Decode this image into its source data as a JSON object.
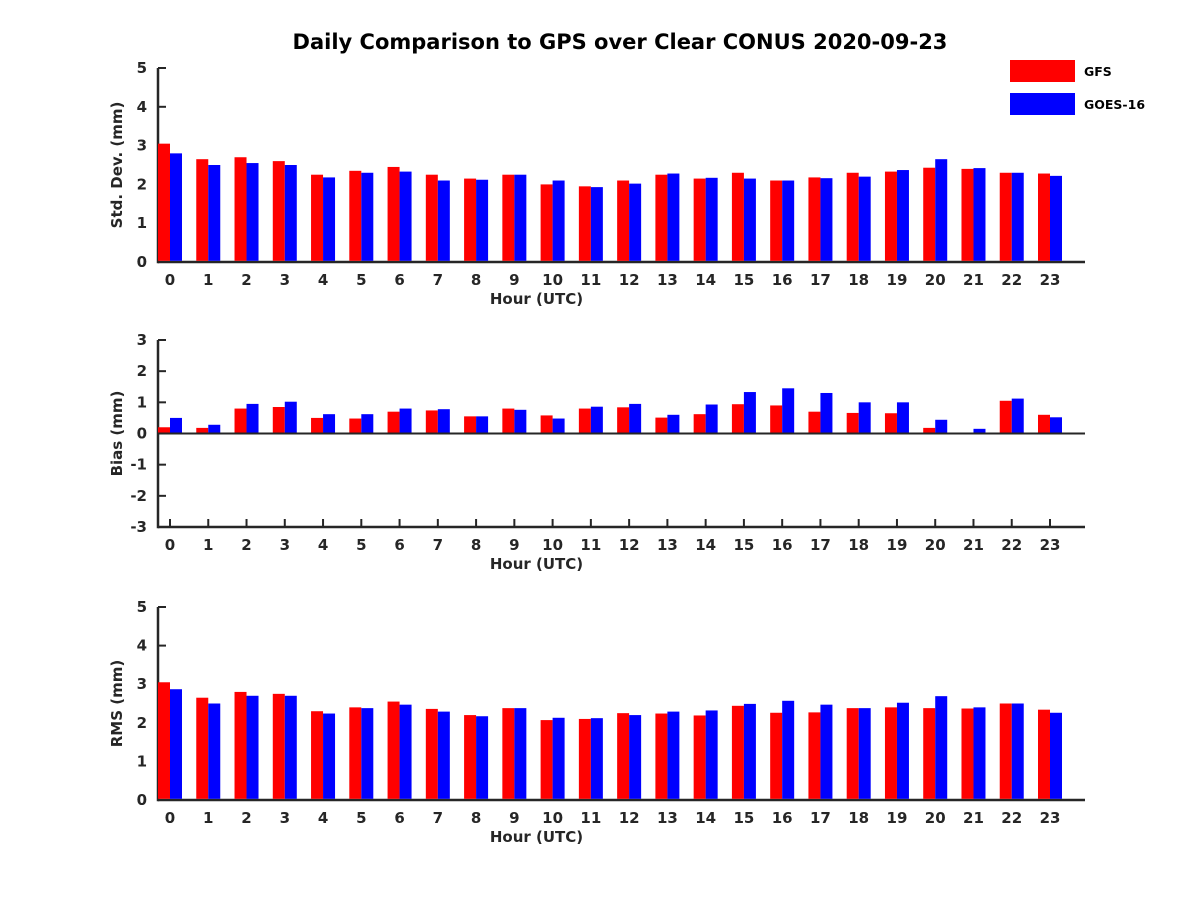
{
  "title": "Daily Comparison to GPS over Clear CONUS 2020-09-23",
  "legend": {
    "position": "top-right",
    "items": [
      {
        "label": "GFS",
        "color": "#ff0000",
        "swatch": "red-swatch"
      },
      {
        "label": "GOES-16",
        "color": "#0000ff",
        "swatch": "blue-swatch"
      }
    ]
  },
  "colors": {
    "gfs": "#ff0000",
    "goes16": "#0000ff",
    "axis": "#262626",
    "title_text": "#000000"
  },
  "chart_data": [
    {
      "id": "stddev",
      "type": "bar",
      "title": "",
      "xlabel": "Hour (UTC)",
      "ylabel": "Std. Dev. (mm)",
      "ylim": [
        0,
        5
      ],
      "yticks": [
        0,
        1,
        2,
        3,
        4,
        5
      ],
      "grid": false,
      "zero_line": false,
      "show_x_ticks": false,
      "categories": [
        "0",
        "1",
        "2",
        "3",
        "4",
        "5",
        "6",
        "7",
        "8",
        "9",
        "10",
        "11",
        "12",
        "13",
        "14",
        "15",
        "16",
        "17",
        "18",
        "19",
        "20",
        "21",
        "22",
        "23"
      ],
      "series": [
        {
          "name": "GFS",
          "color": "#ff0000",
          "values": [
            3.05,
            2.65,
            2.7,
            2.6,
            2.25,
            2.35,
            2.45,
            2.25,
            2.15,
            2.25,
            2.0,
            1.95,
            2.1,
            2.25,
            2.15,
            2.3,
            2.1,
            2.18,
            2.3,
            2.33,
            2.43,
            2.4,
            2.3,
            2.28
          ]
        },
        {
          "name": "GOES-16",
          "color": "#0000ff",
          "values": [
            2.8,
            2.5,
            2.55,
            2.5,
            2.18,
            2.3,
            2.33,
            2.1,
            2.12,
            2.25,
            2.1,
            1.93,
            2.02,
            2.28,
            2.17,
            2.15,
            2.1,
            2.16,
            2.2,
            2.37,
            2.65,
            2.42,
            2.3,
            2.22
          ]
        }
      ]
    },
    {
      "id": "bias",
      "type": "bar",
      "title": "",
      "xlabel": "Hour (UTC)",
      "ylabel": "Bias (mm)",
      "ylim": [
        -3,
        3
      ],
      "yticks": [
        -3,
        -2,
        -1,
        0,
        1,
        2,
        3
      ],
      "grid": false,
      "zero_line": true,
      "show_x_ticks": true,
      "categories": [
        "0",
        "1",
        "2",
        "3",
        "4",
        "5",
        "6",
        "7",
        "8",
        "9",
        "10",
        "11",
        "12",
        "13",
        "14",
        "15",
        "16",
        "17",
        "18",
        "19",
        "20",
        "21",
        "22",
        "23"
      ],
      "series": [
        {
          "name": "GFS",
          "color": "#ff0000",
          "values": [
            0.2,
            0.18,
            0.8,
            0.85,
            0.5,
            0.48,
            0.7,
            0.74,
            0.55,
            0.8,
            0.58,
            0.8,
            0.84,
            0.51,
            0.62,
            0.94,
            0.9,
            0.7,
            0.66,
            0.65,
            0.18,
            0.0,
            1.05,
            0.6
          ]
        },
        {
          "name": "GOES-16",
          "color": "#0000ff",
          "values": [
            0.5,
            0.28,
            0.95,
            1.02,
            0.62,
            0.62,
            0.8,
            0.78,
            0.55,
            0.76,
            0.48,
            0.86,
            0.95,
            0.6,
            0.93,
            1.33,
            1.45,
            1.3,
            1.0,
            1.0,
            0.44,
            0.15,
            1.12,
            0.52
          ]
        }
      ]
    },
    {
      "id": "rms",
      "type": "bar",
      "title": "",
      "xlabel": "Hour (UTC)",
      "ylabel": "RMS (mm)",
      "ylim": [
        0,
        5
      ],
      "yticks": [
        0,
        1,
        2,
        3,
        4,
        5
      ],
      "grid": false,
      "zero_line": false,
      "show_x_ticks": false,
      "categories": [
        "0",
        "1",
        "2",
        "3",
        "4",
        "5",
        "6",
        "7",
        "8",
        "9",
        "10",
        "11",
        "12",
        "13",
        "14",
        "15",
        "16",
        "17",
        "18",
        "19",
        "20",
        "21",
        "22",
        "23"
      ],
      "series": [
        {
          "name": "GFS",
          "color": "#ff0000",
          "values": [
            3.05,
            2.65,
            2.8,
            2.75,
            2.3,
            2.4,
            2.55,
            2.36,
            2.2,
            2.38,
            2.07,
            2.1,
            2.25,
            2.24,
            2.19,
            2.44,
            2.26,
            2.27,
            2.38,
            2.4,
            2.38,
            2.37,
            2.5,
            2.34
          ]
        },
        {
          "name": "GOES-16",
          "color": "#0000ff",
          "values": [
            2.87,
            2.5,
            2.7,
            2.7,
            2.24,
            2.38,
            2.47,
            2.29,
            2.17,
            2.38,
            2.13,
            2.12,
            2.2,
            2.29,
            2.32,
            2.49,
            2.57,
            2.47,
            2.38,
            2.52,
            2.69,
            2.4,
            2.5,
            2.26
          ]
        }
      ]
    }
  ]
}
